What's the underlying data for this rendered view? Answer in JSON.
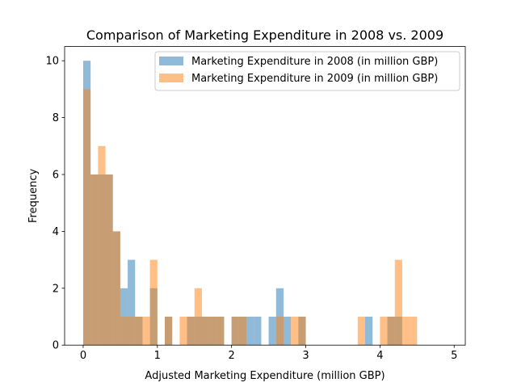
{
  "chart_data": {
    "type": "bar",
    "title": "Comparison of Marketing Expenditure in 2008 vs. 2009",
    "xlabel": "Adjusted Marketing Expenditure (million GBP)",
    "ylabel": "Frequency",
    "xlim": [
      -0.25,
      5.15
    ],
    "ylim": [
      0,
      10.5
    ],
    "x_ticks": [
      "0",
      "1",
      "2",
      "3",
      "4",
      "5"
    ],
    "y_ticks": [
      "0",
      "2",
      "4",
      "6",
      "8",
      "10"
    ],
    "grid": false,
    "legend_position": "top-right",
    "bin_width": 0.1,
    "bin_start": 0.0,
    "series": [
      {
        "name": "Marketing Expenditure in 2008 (in million GBP)",
        "color": "#1f77b4",
        "alpha": 0.5,
        "values": [
          10,
          6,
          6,
          6,
          4,
          2,
          3,
          1,
          0,
          2,
          0,
          1,
          0,
          0,
          1,
          1,
          1,
          1,
          1,
          0,
          1,
          1,
          1,
          1,
          0,
          1,
          2,
          1,
          0,
          1,
          0,
          0,
          0,
          0,
          0,
          0,
          0,
          0,
          1,
          0,
          0,
          1,
          1,
          0,
          0,
          0,
          0,
          0,
          0,
          0
        ]
      },
      {
        "name": "Marketing Expenditure in 2009 (in million GBP)",
        "color": "#ff7f0e",
        "alpha": 0.5,
        "values": [
          9,
          6,
          7,
          6,
          4,
          1,
          1,
          1,
          1,
          3,
          0,
          1,
          0,
          1,
          1,
          2,
          1,
          1,
          1,
          0,
          1,
          1,
          0,
          0,
          0,
          0,
          1,
          0,
          1,
          1,
          0,
          0,
          0,
          0,
          0,
          0,
          0,
          1,
          0,
          0,
          1,
          1,
          3,
          1,
          1,
          0,
          0,
          0,
          0,
          0
        ]
      }
    ]
  }
}
